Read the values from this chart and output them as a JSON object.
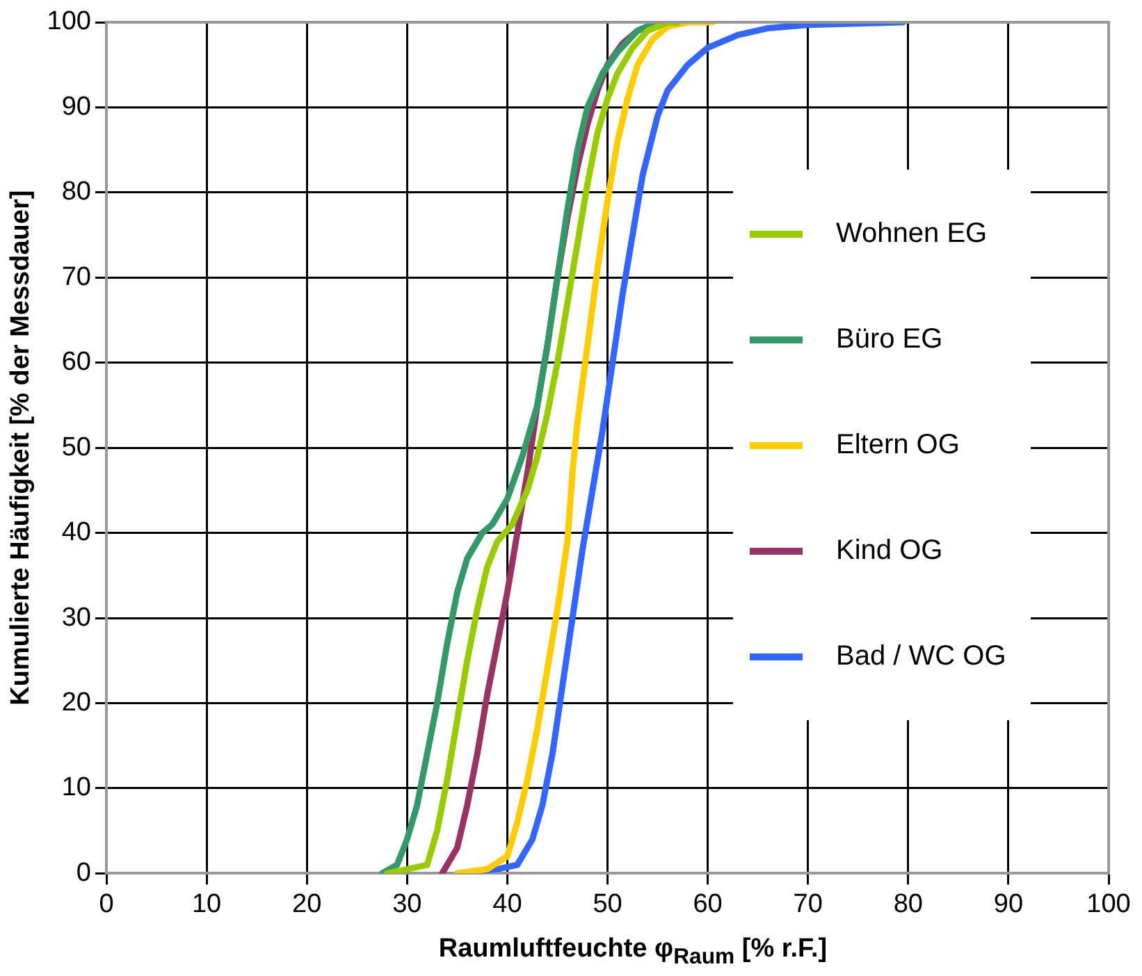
{
  "chart_data": {
    "type": "line",
    "xlabel": "Raumluftfeuchte φ$_{Raum}$ [% r.F.]",
    "ylabel": "Kumulierte Häufigkeit [% der Messdauer]",
    "xlim": [
      0,
      100
    ],
    "ylim": [
      0,
      100
    ],
    "xticks": [
      0,
      10,
      20,
      30,
      40,
      50,
      60,
      70,
      80,
      90,
      100
    ],
    "yticks": [
      0,
      10,
      20,
      30,
      40,
      50,
      60,
      70,
      80,
      90,
      100
    ],
    "grid": true,
    "legend": "right",
    "marker": "none",
    "line_style": "solid",
    "series": [
      {
        "name": "Wohnen EG",
        "color": "#99cc00",
        "x": [
          28,
          30,
          32,
          33,
          34,
          35,
          36,
          37,
          38,
          39,
          40.5,
          42,
          43,
          44,
          45,
          46,
          47,
          48,
          49,
          50,
          51,
          52.5,
          54,
          56,
          57
        ],
        "values": [
          0,
          0.5,
          1,
          5,
          11,
          18,
          25,
          31,
          36,
          39,
          41,
          45,
          49,
          54,
          60,
          67,
          74,
          81,
          87,
          91,
          94,
          97,
          99,
          100,
          100
        ]
      },
      {
        "name": "Büro EG",
        "color": "#339966",
        "x": [
          27.5,
          29,
          30,
          31,
          32,
          33,
          34,
          35,
          36,
          37.5,
          38.5,
          40,
          41.5,
          43,
          44,
          45,
          46,
          47,
          48,
          49.5,
          51,
          53,
          55,
          57
        ],
        "values": [
          0,
          1,
          4,
          8,
          14,
          20,
          27,
          33,
          37,
          40,
          41,
          44,
          49,
          55,
          62,
          70,
          78,
          85,
          90,
          94,
          96.5,
          99,
          100,
          100
        ]
      },
      {
        "name": "Eltern OG",
        "color": "#ffcc00",
        "x": [
          35,
          38,
          40,
          41,
          42,
          43,
          44,
          45,
          46,
          46.5,
          47,
          48,
          49,
          50,
          51,
          52,
          53,
          54.5,
          56,
          58,
          60.5
        ],
        "values": [
          0,
          0.5,
          2,
          6,
          11,
          17,
          24,
          31,
          39,
          47,
          53,
          62,
          71,
          79,
          86,
          91,
          95,
          98,
          99.5,
          100,
          100
        ]
      },
      {
        "name": "Kind OG",
        "color": "#993366",
        "x": [
          33.5,
          35,
          36,
          37,
          38,
          39,
          40,
          41,
          42,
          43,
          44,
          45,
          46,
          47,
          48,
          49,
          50,
          51.5,
          53,
          55
        ],
        "values": [
          0,
          3,
          8,
          14,
          21,
          27,
          33,
          40,
          47,
          55,
          62,
          70,
          77,
          83,
          88,
          92,
          95,
          97.5,
          99,
          100
        ]
      },
      {
        "name": "Bad / WC OG",
        "color": "#3366ff",
        "x": [
          35,
          39,
          41,
          42.5,
          43.5,
          44.5,
          45.5,
          46.5,
          47.5,
          48.5,
          49.5,
          50.5,
          51.5,
          52.5,
          53.5,
          55,
          56,
          58,
          60,
          63,
          66,
          70,
          79.5
        ],
        "values": [
          0,
          0.5,
          1,
          4,
          8,
          14,
          22,
          30,
          38,
          45,
          52,
          60,
          68,
          75,
          82,
          89,
          92,
          95,
          97,
          98.5,
          99.3,
          99.7,
          100
        ]
      }
    ]
  }
}
